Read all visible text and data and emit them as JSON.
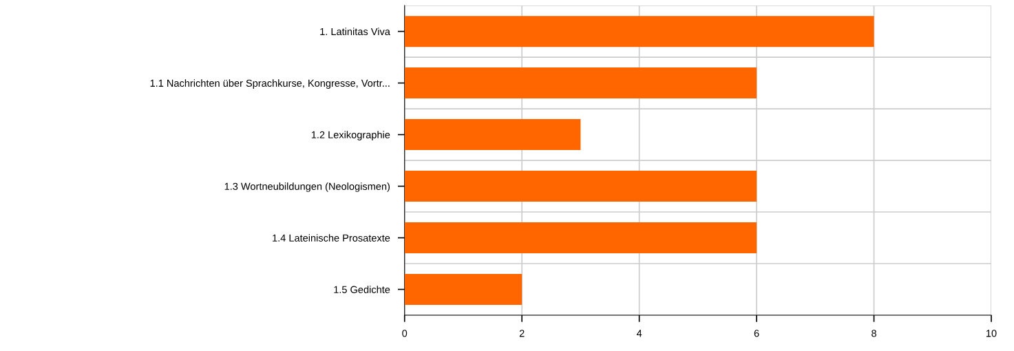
{
  "chart_data": {
    "type": "bar",
    "orientation": "horizontal",
    "categories": [
      "1. Latinitas Viva",
      "1.1 Nachrichten über Sprachkurse, Kongresse, Vortr...",
      "1.2 Lexikographie",
      "1.3 Wortneubildungen (Neologismen)",
      "1.4 Lateinische Prosatexte",
      "1.5 Gedichte"
    ],
    "values": [
      8,
      6,
      3,
      6,
      6,
      2
    ],
    "color": "#ff6600",
    "xlim": [
      0,
      10
    ],
    "xticks": [
      0,
      2,
      4,
      6,
      8,
      10
    ],
    "grid": true
  }
}
